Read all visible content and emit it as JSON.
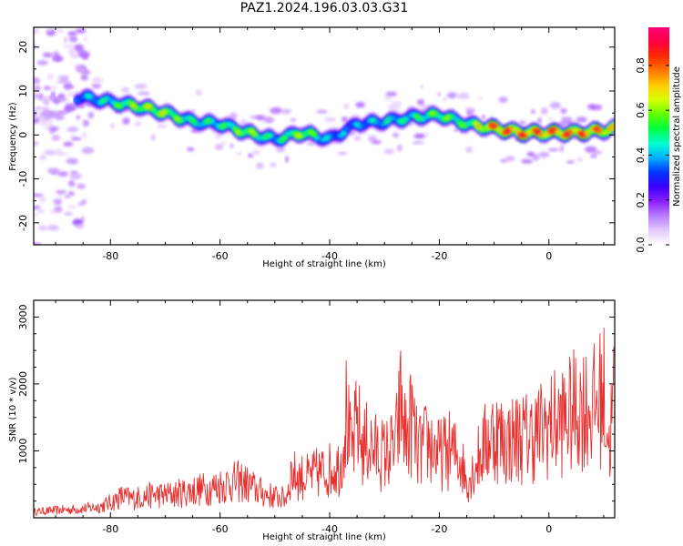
{
  "title": "PAZ1.2024.196.03.03.G31",
  "colors": {
    "snr_line": "#e8302f",
    "axis": "#000000"
  },
  "chart_data": [
    {
      "type": "heatmap",
      "xlabel": "Height of straight line (km)",
      "ylabel": "Frequency (Hz)",
      "xlim": [
        -94,
        12
      ],
      "ylim": [
        -25,
        24.5
      ],
      "xticks": [
        -80,
        -60,
        -40,
        -20,
        0
      ],
      "yticks": [
        -20,
        -10,
        0,
        10,
        20
      ],
      "colorbar": {
        "label": "Normalized spectral amplitude",
        "range": [
          0.0,
          0.97
        ],
        "ticks": [
          0.0,
          0.2,
          0.4,
          0.6,
          0.8
        ],
        "colormap": [
          "#ffffff",
          "#e4c9ff",
          "#b87cff",
          "#8a20ff",
          "#3b00ff",
          "#0033ff",
          "#00b0ff",
          "#00ffd0",
          "#00ff40",
          "#60ff00",
          "#d8ff00",
          "#ffcc00",
          "#ff7700",
          "#ff2a00",
          "#ff0040",
          "#ff007a"
        ]
      },
      "ridge": {
        "x": [
          -85,
          -80,
          -75,
          -70,
          -65,
          -60,
          -55,
          -50,
          -45,
          -40,
          -35,
          -30,
          -25,
          -20,
          -15,
          -10,
          -5,
          0,
          5,
          10,
          12
        ],
        "frequency": [
          8.5,
          7.5,
          6.5,
          5.0,
          3.0,
          2.5,
          0.5,
          -1.0,
          0.5,
          -1.0,
          2.5,
          3.0,
          4.0,
          4.5,
          2.5,
          1.5,
          0.5,
          0.5,
          0.5,
          1.0,
          1.5
        ],
        "amplitude": [
          0.45,
          0.55,
          0.7,
          0.72,
          0.55,
          0.55,
          0.7,
          0.5,
          0.72,
          0.45,
          0.45,
          0.5,
          0.55,
          0.65,
          0.6,
          0.92,
          0.92,
          0.92,
          0.92,
          0.88,
          0.75
        ]
      }
    },
    {
      "type": "line",
      "xlabel": "Height of straight line (km)",
      "ylabel": "SNR (10 * v/v)",
      "xlim": [
        -94,
        12
      ],
      "ylim": [
        0,
        3250
      ],
      "xticks": [
        -80,
        -60,
        -40,
        -20,
        0
      ],
      "yticks": [
        1000,
        2000,
        3000
      ],
      "series": [
        {
          "x": [
            -94,
            -90,
            -86,
            -82,
            -80,
            -78,
            -76,
            -74,
            -72,
            -70,
            -68,
            -66,
            -64,
            -62,
            -60,
            -58,
            -56,
            -54,
            -52,
            -50,
            -48,
            -47,
            -46,
            -44,
            -42,
            -40,
            -38,
            -37,
            -36,
            -35,
            -34,
            -33,
            -32,
            -30,
            -28,
            -27,
            -26,
            -25,
            -24,
            -22,
            -20,
            -18,
            -16,
            -15,
            -14,
            -12,
            -10,
            -8,
            -6,
            -4,
            -2,
            0,
            2,
            4,
            6,
            8,
            10,
            11,
            12
          ],
          "y": [
            120,
            150,
            170,
            220,
            300,
            420,
            380,
            420,
            460,
            450,
            480,
            520,
            560,
            580,
            640,
            700,
            720,
            600,
            480,
            420,
            380,
            900,
            820,
            800,
            900,
            950,
            1050,
            2100,
            1250,
            1900,
            1400,
            1500,
            1350,
            1250,
            1400,
            2300,
            1500,
            2000,
            1300,
            1500,
            1250,
            1350,
            1150,
            700,
            900,
            1400,
            1700,
            1500,
            1600,
            1600,
            1700,
            1850,
            1900,
            2050,
            2250,
            2150,
            2500,
            1400,
            2600
          ]
        }
      ]
    }
  ]
}
